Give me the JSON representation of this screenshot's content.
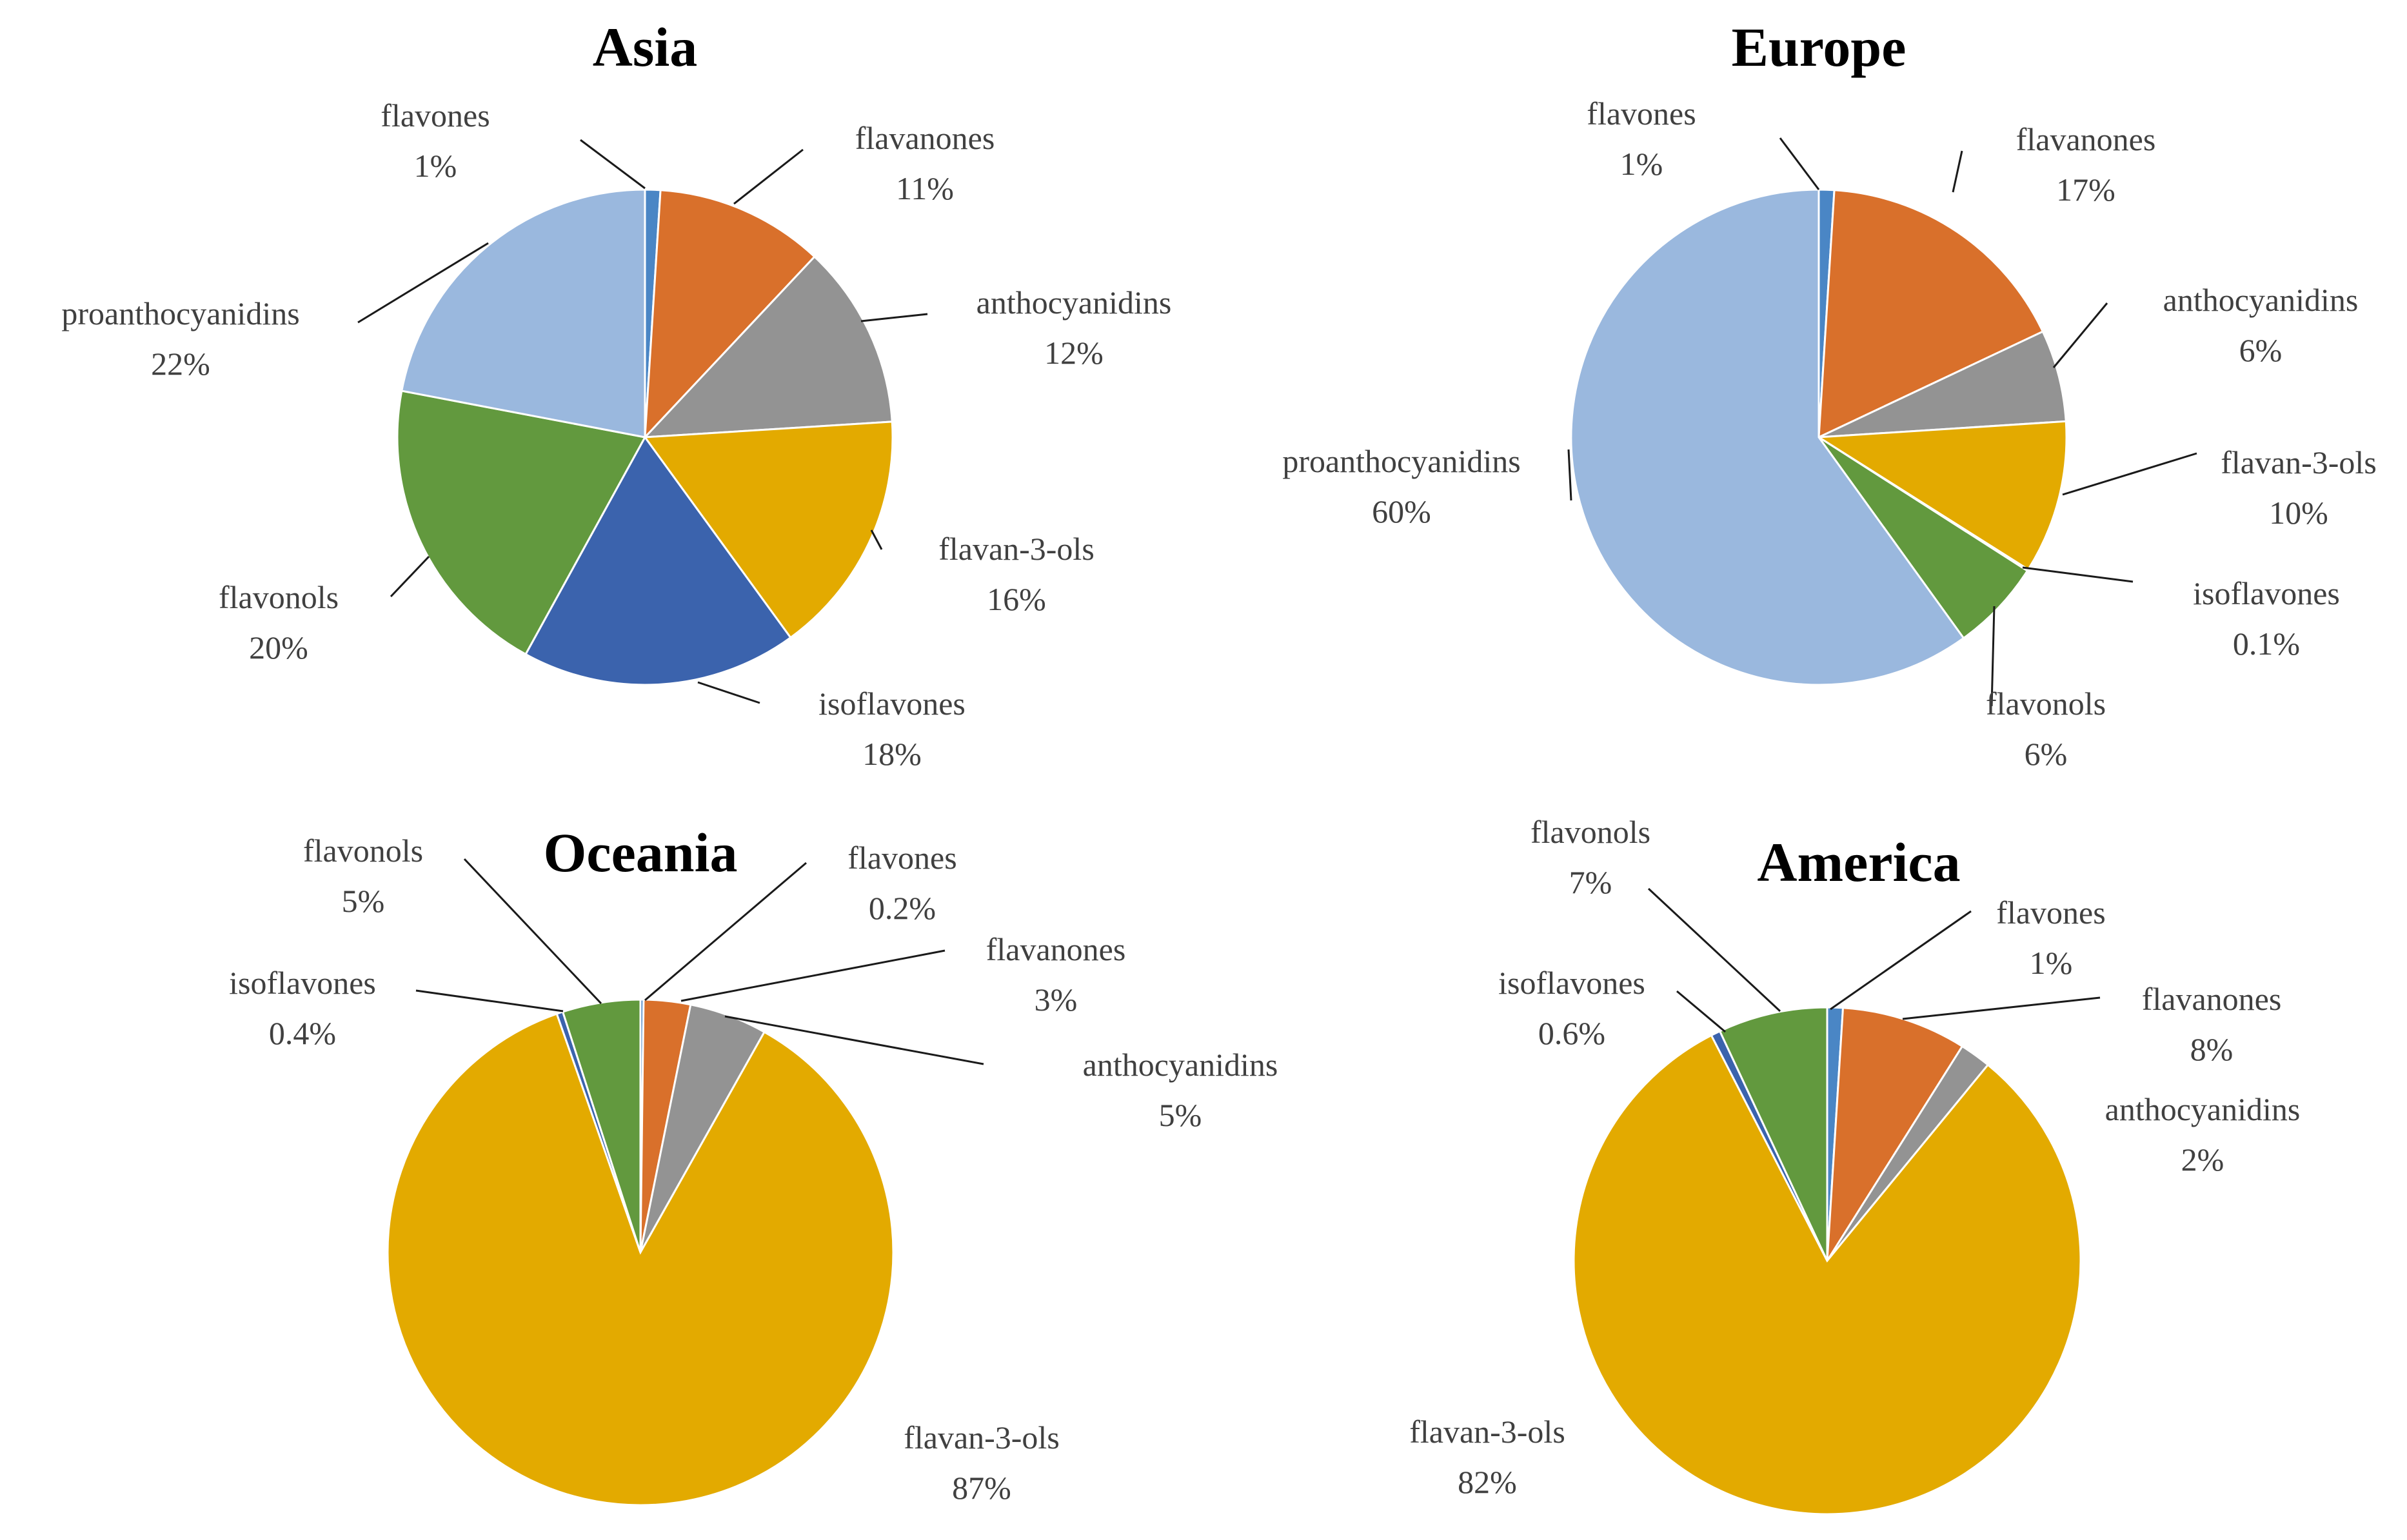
{
  "colors": {
    "flavones": "#4a86c5",
    "flavanones": "#d9702b",
    "anthocyanidins": "#939393",
    "flavan-3-ols": "#e3aa00",
    "isoflavones": "#3b63ad",
    "flavonols": "#62993e",
    "proanthocyanidins": "#9ab8de"
  },
  "chart_data": [
    {
      "type": "pie",
      "title": "Asia",
      "slices": [
        {
          "name": "flavones",
          "value": 1,
          "label": "1%"
        },
        {
          "name": "flavanones",
          "value": 11,
          "label": "11%"
        },
        {
          "name": "anthocyanidins",
          "value": 12,
          "label": "12%"
        },
        {
          "name": "flavan-3-ols",
          "value": 16,
          "label": "16%"
        },
        {
          "name": "isoflavones",
          "value": 18,
          "label": "18%"
        },
        {
          "name": "flavonols",
          "value": 20,
          "label": "20%"
        },
        {
          "name": "proanthocyanidins",
          "value": 22,
          "label": "22%"
        }
      ]
    },
    {
      "type": "pie",
      "title": "Europe",
      "slices": [
        {
          "name": "flavones",
          "value": 1,
          "label": "1%"
        },
        {
          "name": "flavanones",
          "value": 17,
          "label": "17%"
        },
        {
          "name": "anthocyanidins",
          "value": 6,
          "label": "6%"
        },
        {
          "name": "flavan-3-ols",
          "value": 10,
          "label": "10%"
        },
        {
          "name": "isoflavones",
          "value": 0.1,
          "label": "0.1%"
        },
        {
          "name": "flavonols",
          "value": 6,
          "label": "6%"
        },
        {
          "name": "proanthocyanidins",
          "value": 60,
          "label": "60%"
        }
      ]
    },
    {
      "type": "pie",
      "title": "Oceania",
      "slices": [
        {
          "name": "flavones",
          "value": 0.2,
          "label": "0.2%"
        },
        {
          "name": "flavanones",
          "value": 3,
          "label": "3%"
        },
        {
          "name": "anthocyanidins",
          "value": 5,
          "label": "5%"
        },
        {
          "name": "flavan-3-ols",
          "value": 87,
          "label": "87%"
        },
        {
          "name": "isoflavones",
          "value": 0.4,
          "label": "0.4%"
        },
        {
          "name": "flavonols",
          "value": 5,
          "label": "5%"
        }
      ]
    },
    {
      "type": "pie",
      "title": "America",
      "slices": [
        {
          "name": "flavones",
          "value": 1,
          "label": "1%"
        },
        {
          "name": "flavanones",
          "value": 8,
          "label": "8%"
        },
        {
          "name": "anthocyanidins",
          "value": 2,
          "label": "2%"
        },
        {
          "name": "flavan-3-ols",
          "value": 82,
          "label": "82%"
        },
        {
          "name": "isoflavones",
          "value": 0.6,
          "label": "0.6%"
        },
        {
          "name": "flavonols",
          "value": 7,
          "label": "7%"
        }
      ]
    }
  ]
}
